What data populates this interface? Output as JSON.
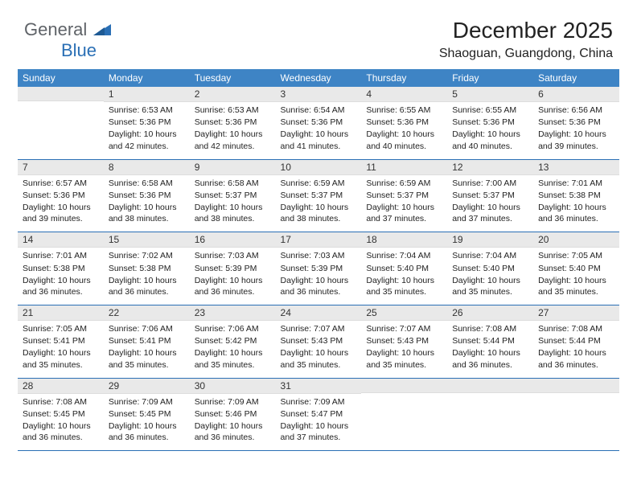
{
  "logo": {
    "gray": "General",
    "blue": "Blue"
  },
  "title": "December 2025",
  "location": "Shaoguan, Guangdong, China",
  "colors": {
    "header_bg": "#3e84c5",
    "header_fg": "#ffffff",
    "daynum_bg": "#e9e9e9",
    "border": "#2a6fb5",
    "logo_gray": "#5f6368",
    "logo_blue": "#2a6fb5"
  },
  "days_of_week": [
    "Sunday",
    "Monday",
    "Tuesday",
    "Wednesday",
    "Thursday",
    "Friday",
    "Saturday"
  ],
  "cells": [
    {
      "n": "",
      "sr": "",
      "ss": "",
      "dl": ""
    },
    {
      "n": "1",
      "sr": "6:53 AM",
      "ss": "5:36 PM",
      "dl": "10 hours and 42 minutes."
    },
    {
      "n": "2",
      "sr": "6:53 AM",
      "ss": "5:36 PM",
      "dl": "10 hours and 42 minutes."
    },
    {
      "n": "3",
      "sr": "6:54 AM",
      "ss": "5:36 PM",
      "dl": "10 hours and 41 minutes."
    },
    {
      "n": "4",
      "sr": "6:55 AM",
      "ss": "5:36 PM",
      "dl": "10 hours and 40 minutes."
    },
    {
      "n": "5",
      "sr": "6:55 AM",
      "ss": "5:36 PM",
      "dl": "10 hours and 40 minutes."
    },
    {
      "n": "6",
      "sr": "6:56 AM",
      "ss": "5:36 PM",
      "dl": "10 hours and 39 minutes."
    },
    {
      "n": "7",
      "sr": "6:57 AM",
      "ss": "5:36 PM",
      "dl": "10 hours and 39 minutes."
    },
    {
      "n": "8",
      "sr": "6:58 AM",
      "ss": "5:36 PM",
      "dl": "10 hours and 38 minutes."
    },
    {
      "n": "9",
      "sr": "6:58 AM",
      "ss": "5:37 PM",
      "dl": "10 hours and 38 minutes."
    },
    {
      "n": "10",
      "sr": "6:59 AM",
      "ss": "5:37 PM",
      "dl": "10 hours and 38 minutes."
    },
    {
      "n": "11",
      "sr": "6:59 AM",
      "ss": "5:37 PM",
      "dl": "10 hours and 37 minutes."
    },
    {
      "n": "12",
      "sr": "7:00 AM",
      "ss": "5:37 PM",
      "dl": "10 hours and 37 minutes."
    },
    {
      "n": "13",
      "sr": "7:01 AM",
      "ss": "5:38 PM",
      "dl": "10 hours and 36 minutes."
    },
    {
      "n": "14",
      "sr": "7:01 AM",
      "ss": "5:38 PM",
      "dl": "10 hours and 36 minutes."
    },
    {
      "n": "15",
      "sr": "7:02 AM",
      "ss": "5:38 PM",
      "dl": "10 hours and 36 minutes."
    },
    {
      "n": "16",
      "sr": "7:03 AM",
      "ss": "5:39 PM",
      "dl": "10 hours and 36 minutes."
    },
    {
      "n": "17",
      "sr": "7:03 AM",
      "ss": "5:39 PM",
      "dl": "10 hours and 36 minutes."
    },
    {
      "n": "18",
      "sr": "7:04 AM",
      "ss": "5:40 PM",
      "dl": "10 hours and 35 minutes."
    },
    {
      "n": "19",
      "sr": "7:04 AM",
      "ss": "5:40 PM",
      "dl": "10 hours and 35 minutes."
    },
    {
      "n": "20",
      "sr": "7:05 AM",
      "ss": "5:40 PM",
      "dl": "10 hours and 35 minutes."
    },
    {
      "n": "21",
      "sr": "7:05 AM",
      "ss": "5:41 PM",
      "dl": "10 hours and 35 minutes."
    },
    {
      "n": "22",
      "sr": "7:06 AM",
      "ss": "5:41 PM",
      "dl": "10 hours and 35 minutes."
    },
    {
      "n": "23",
      "sr": "7:06 AM",
      "ss": "5:42 PM",
      "dl": "10 hours and 35 minutes."
    },
    {
      "n": "24",
      "sr": "7:07 AM",
      "ss": "5:43 PM",
      "dl": "10 hours and 35 minutes."
    },
    {
      "n": "25",
      "sr": "7:07 AM",
      "ss": "5:43 PM",
      "dl": "10 hours and 35 minutes."
    },
    {
      "n": "26",
      "sr": "7:08 AM",
      "ss": "5:44 PM",
      "dl": "10 hours and 36 minutes."
    },
    {
      "n": "27",
      "sr": "7:08 AM",
      "ss": "5:44 PM",
      "dl": "10 hours and 36 minutes."
    },
    {
      "n": "28",
      "sr": "7:08 AM",
      "ss": "5:45 PM",
      "dl": "10 hours and 36 minutes."
    },
    {
      "n": "29",
      "sr": "7:09 AM",
      "ss": "5:45 PM",
      "dl": "10 hours and 36 minutes."
    },
    {
      "n": "30",
      "sr": "7:09 AM",
      "ss": "5:46 PM",
      "dl": "10 hours and 36 minutes."
    },
    {
      "n": "31",
      "sr": "7:09 AM",
      "ss": "5:47 PM",
      "dl": "10 hours and 37 minutes."
    },
    {
      "n": "",
      "sr": "",
      "ss": "",
      "dl": ""
    },
    {
      "n": "",
      "sr": "",
      "ss": "",
      "dl": ""
    },
    {
      "n": "",
      "sr": "",
      "ss": "",
      "dl": ""
    }
  ],
  "labels": {
    "sunrise": "Sunrise: ",
    "sunset": "Sunset: ",
    "daylight": "Daylight: "
  }
}
